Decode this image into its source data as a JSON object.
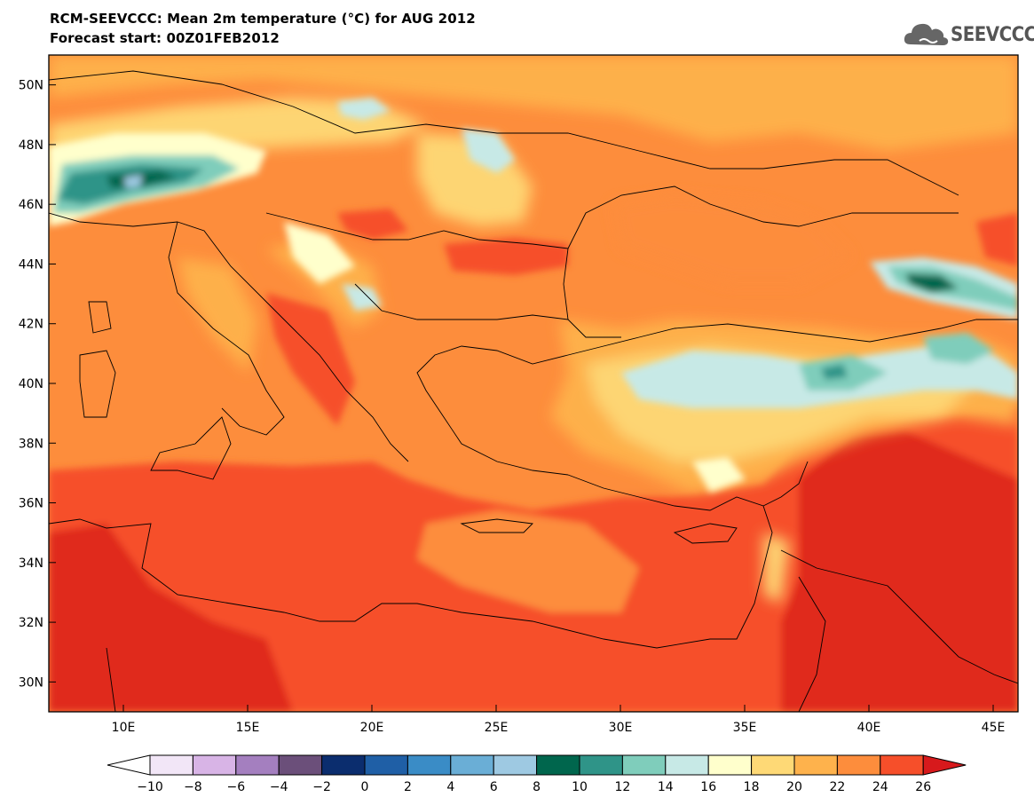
{
  "header": {
    "title_line1": "RCM-SEEVCCC: Mean 2m temperature (°C) for AUG 2012",
    "title_line2": "Forecast start: 00Z01FEB2012"
  },
  "logo": {
    "icon": "cloud-logo-icon",
    "text": "SEEVCCC"
  },
  "map": {
    "variable": "Mean 2m temperature (°C)",
    "lon_range": [
      7,
      46
    ],
    "lat_range": [
      29,
      51
    ],
    "lon_ticks": [
      {
        "value": 10,
        "label": "10E"
      },
      {
        "value": 15,
        "label": "15E"
      },
      {
        "value": 20,
        "label": "20E"
      },
      {
        "value": 25,
        "label": "25E"
      },
      {
        "value": 30,
        "label": "30E"
      },
      {
        "value": 35,
        "label": "35E"
      },
      {
        "value": 40,
        "label": "40E"
      },
      {
        "value": 45,
        "label": "45E"
      }
    ],
    "lat_ticks": [
      {
        "value": 30,
        "label": "30N"
      },
      {
        "value": 32,
        "label": "32N"
      },
      {
        "value": 34,
        "label": "34N"
      },
      {
        "value": 36,
        "label": "36N"
      },
      {
        "value": 38,
        "label": "38N"
      },
      {
        "value": 40,
        "label": "40N"
      },
      {
        "value": 42,
        "label": "42N"
      },
      {
        "value": 44,
        "label": "44N"
      },
      {
        "value": 46,
        "label": "46N"
      },
      {
        "value": 48,
        "label": "48N"
      },
      {
        "value": 50,
        "label": "50N"
      }
    ]
  },
  "colorbar": {
    "labels": [
      "−10",
      "−8",
      "−6",
      "−4",
      "−2",
      "0",
      "2",
      "4",
      "6",
      "8",
      "10",
      "12",
      "14",
      "16",
      "18",
      "20",
      "22",
      "24",
      "26"
    ],
    "under_color": "#ffffff",
    "over_color": "#d7191c",
    "colors": [
      "#f2e6f7",
      "#d8b4e6",
      "#a47fbf",
      "#6b4f7a",
      "#0b2d6e",
      "#1f5fa6",
      "#3a8cc6",
      "#6aaed6",
      "#9ec9e2",
      "#00664d",
      "#2f9488",
      "#7fcdbb",
      "#c7e9e6",
      "#ffffcc",
      "#fed976",
      "#feb24c",
      "#fd8d3c",
      "#f64f2a"
    ]
  }
}
